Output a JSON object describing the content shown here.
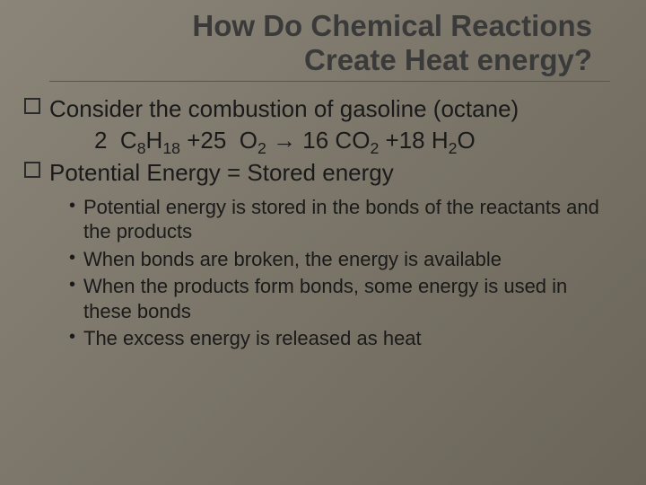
{
  "title_line1": "How Do Chemical Reactions",
  "title_line2": "Create Heat energy?",
  "bullet1": "Consider the combustion of gasoline (octane)",
  "eq_prefix": "2  C",
  "eq_c_sub1": "8",
  "eq_mid1": "H",
  "eq_h_sub1": "18",
  "eq_plus1": " +25  O",
  "eq_o_sub1": "2",
  "eq_arrow": " → ",
  "eq_prod1": "16 CO",
  "eq_co_sub": "2",
  "eq_plus2": " +18 H",
  "eq_h_sub2": "2",
  "eq_end": "O",
  "bullet2": "Potential Energy = Stored energy",
  "sub1": "Potential energy is stored in the bonds of the reactants and the products",
  "sub2": "When bonds are broken, the energy is available",
  "sub3": "When the products form bonds, some energy is used in these bonds",
  "sub4": "The excess energy is released as heat",
  "colors": {
    "title_color": "#3a3a3a",
    "body_color": "#1a1a1a",
    "background_start": "#8a8578",
    "background_end": "#6a6558",
    "underline": "#5a5548"
  },
  "fonts": {
    "title_size_pt": 25,
    "body_size_pt": 20,
    "sub_size_pt": 17
  }
}
